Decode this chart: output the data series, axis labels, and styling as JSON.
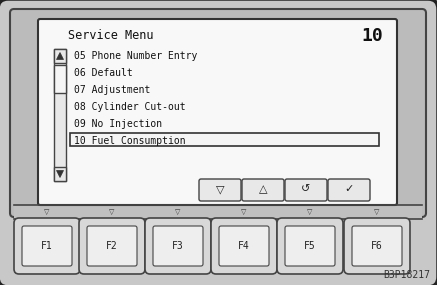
{
  "bg_color": "#c8c8c8",
  "device_bg": "#d0d0d0",
  "screen_bg": "#f5f5f5",
  "title": "Service Menu",
  "page_num": "10",
  "menu_items": [
    "05 Phone Number Entry",
    "06 Default",
    "07 Adjustment",
    "08 Cylinder Cut-out",
    "09 No Injection",
    "10 Fuel Consumption"
  ],
  "selected_index": 5,
  "function_keys": [
    "F1",
    "F2",
    "F3",
    "F4",
    "F5",
    "F6"
  ],
  "font_family": "monospace",
  "watermark": "B3P18217"
}
